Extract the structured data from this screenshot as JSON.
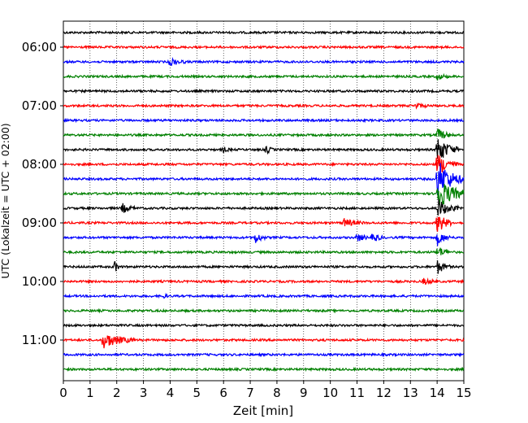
{
  "chart_data": {
    "type": "line",
    "title": "",
    "xlabel": "Zeit  [min]",
    "ylabel": "UTC (Lokalzeit = UTC + 02:00)",
    "xlim": [
      0,
      15
    ],
    "x_ticks": [
      "0",
      "1",
      "2",
      "3",
      "4",
      "5",
      "6",
      "7",
      "8",
      "9",
      "10",
      "11",
      "12",
      "13",
      "14",
      "15"
    ],
    "y_tick_labels": [
      "06:00",
      "07:00",
      "08:00",
      "09:00",
      "10:00",
      "11:00"
    ],
    "grid": "vertical dotted",
    "legend": "none",
    "colors": [
      "#000000",
      "#ff0000",
      "#0000ff",
      "#008000"
    ],
    "trace_interval_minutes": 15,
    "traces": [
      {
        "start": "05:45",
        "color": "#000000"
      },
      {
        "start": "06:00",
        "color": "#ff0000"
      },
      {
        "start": "06:15",
        "color": "#0000ff"
      },
      {
        "start": "06:30",
        "color": "#008000"
      },
      {
        "start": "06:45",
        "color": "#000000"
      },
      {
        "start": "07:00",
        "color": "#ff0000"
      },
      {
        "start": "07:15",
        "color": "#0000ff"
      },
      {
        "start": "07:30",
        "color": "#008000"
      },
      {
        "start": "07:45",
        "color": "#000000"
      },
      {
        "start": "08:00",
        "color": "#ff0000"
      },
      {
        "start": "08:15",
        "color": "#0000ff"
      },
      {
        "start": "08:30",
        "color": "#008000"
      },
      {
        "start": "08:45",
        "color": "#000000"
      },
      {
        "start": "09:00",
        "color": "#ff0000"
      },
      {
        "start": "09:15",
        "color": "#0000ff"
      },
      {
        "start": "09:30",
        "color": "#008000"
      },
      {
        "start": "09:45",
        "color": "#000000"
      },
      {
        "start": "10:00",
        "color": "#ff0000"
      },
      {
        "start": "10:15",
        "color": "#0000ff"
      },
      {
        "start": "10:30",
        "color": "#008000"
      },
      {
        "start": "10:45",
        "color": "#000000"
      },
      {
        "start": "11:00",
        "color": "#ff0000"
      },
      {
        "start": "11:15",
        "color": "#0000ff"
      },
      {
        "start": "11:30",
        "color": "#008000"
      }
    ],
    "events": [
      {
        "trace": 2,
        "x": 4.0,
        "amplitude": 5,
        "duration": 0.6
      },
      {
        "trace": 3,
        "x": 14.0,
        "amplitude": 4,
        "duration": 0.5
      },
      {
        "trace": 5,
        "x": 13.2,
        "amplitude": 3,
        "duration": 0.5
      },
      {
        "trace": 7,
        "x": 14.0,
        "amplitude": 8,
        "duration": 0.6
      },
      {
        "trace": 8,
        "x": 14.0,
        "amplitude": 18,
        "duration": 0.8
      },
      {
        "trace": 8,
        "x": 7.6,
        "amplitude": 5,
        "duration": 0.3
      },
      {
        "trace": 8,
        "x": 6.0,
        "amplitude": 3,
        "duration": 0.3
      },
      {
        "trace": 9,
        "x": 14.0,
        "amplitude": 15,
        "duration": 0.8
      },
      {
        "trace": 10,
        "x": 14.0,
        "amplitude": 25,
        "duration": 1.0
      },
      {
        "trace": 11,
        "x": 14.0,
        "amplitude": 20,
        "duration": 1.2
      },
      {
        "trace": 12,
        "x": 2.2,
        "amplitude": 6,
        "duration": 0.5
      },
      {
        "trace": 12,
        "x": 14.0,
        "amplitude": 12,
        "duration": 0.8
      },
      {
        "trace": 13,
        "x": 10.5,
        "amplitude": 5,
        "duration": 0.8
      },
      {
        "trace": 13,
        "x": 14.0,
        "amplitude": 14,
        "duration": 0.6
      },
      {
        "trace": 14,
        "x": 7.2,
        "amplitude": 7,
        "duration": 0.4
      },
      {
        "trace": 14,
        "x": 11.0,
        "amplitude": 5,
        "duration": 0.5
      },
      {
        "trace": 14,
        "x": 11.6,
        "amplitude": 6,
        "duration": 0.4
      },
      {
        "trace": 14,
        "x": 14.0,
        "amplitude": 10,
        "duration": 0.5
      },
      {
        "trace": 15,
        "x": 14.0,
        "amplitude": 8,
        "duration": 0.5
      },
      {
        "trace": 16,
        "x": 1.9,
        "amplitude": 7,
        "duration": 0.3
      },
      {
        "trace": 16,
        "x": 14.0,
        "amplitude": 9,
        "duration": 0.5
      },
      {
        "trace": 17,
        "x": 13.5,
        "amplitude": 4,
        "duration": 0.5
      },
      {
        "trace": 18,
        "x": 3.7,
        "amplitude": 4,
        "duration": 0.2
      },
      {
        "trace": 21,
        "x": 1.5,
        "amplitude": 10,
        "duration": 1.2
      }
    ]
  }
}
